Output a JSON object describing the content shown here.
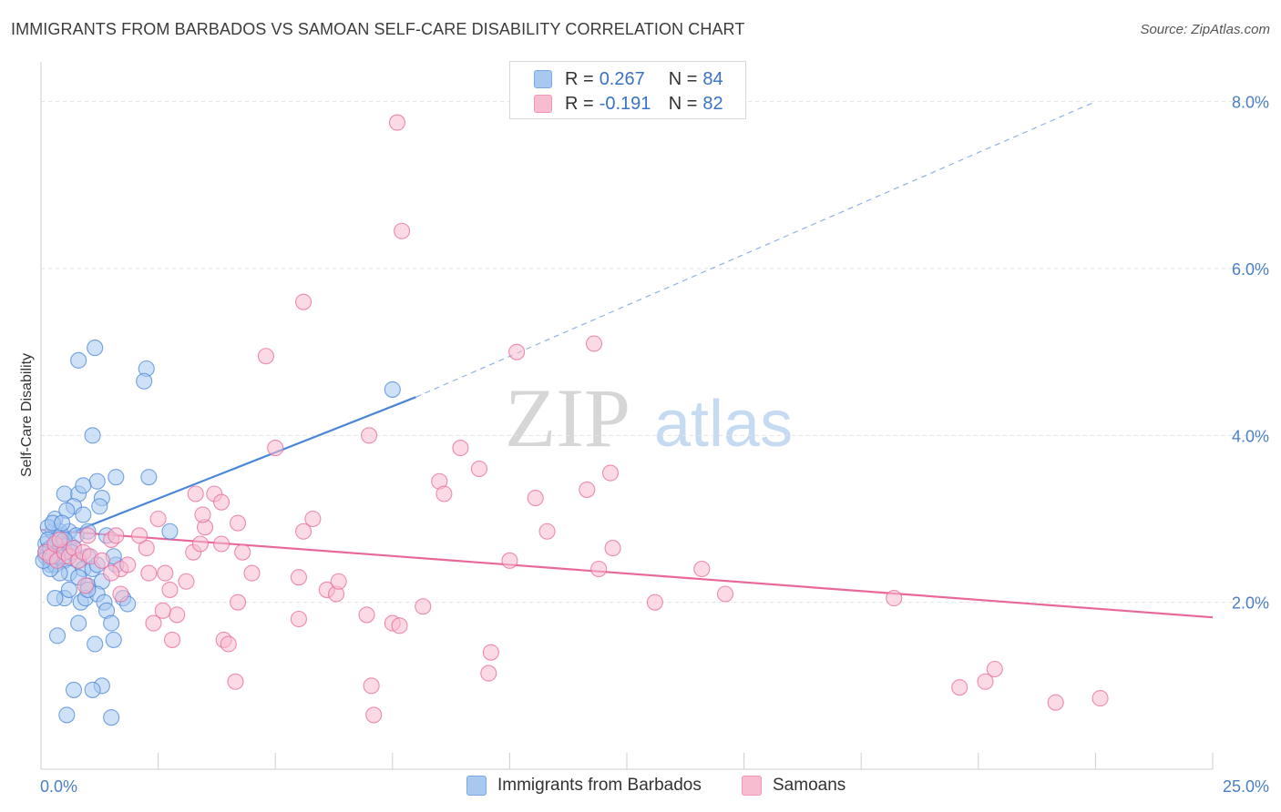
{
  "title": "IMMIGRANTS FROM BARBADOS VS SAMOAN SELF-CARE DISABILITY CORRELATION CHART",
  "source": "Source: ZipAtlas.com",
  "watermark": {
    "zip": "ZIP",
    "atlas": "atlas"
  },
  "legend": [
    {
      "r_label": "R =",
      "r_value": "0.267",
      "n_label": "N =",
      "n_value": "84",
      "color": "#a8c8f0"
    },
    {
      "r_label": "R =",
      "r_value": "-0.191",
      "n_label": "N =",
      "n_value": "82",
      "color": "#f8bcd0"
    }
  ],
  "chart_data": {
    "type": "scatter",
    "title": "IMMIGRANTS FROM BARBADOS VS SAMOAN SELF-CARE DISABILITY CORRELATION CHART",
    "xlabel": "",
    "ylabel": "Self-Care Disability",
    "xlim": [
      0,
      25
    ],
    "ylim": [
      0,
      8.4
    ],
    "x_tick_labels": [
      "0.0%",
      "25.0%"
    ],
    "y_ticks": [
      2,
      4,
      6,
      8
    ],
    "y_tick_labels": [
      "2.0%",
      "4.0%",
      "6.0%",
      "8.0%"
    ],
    "grid": true,
    "legend_position": "top-center",
    "series": [
      {
        "name": "Immigrants from Barbados",
        "color": "#4a86d8",
        "fill": "#a8c8f0",
        "trend": {
          "x": [
            0,
            8
          ],
          "y": [
            2.69,
            4.46
          ],
          "extend_dashed_to": [
            22.5,
            8.0
          ]
        },
        "points": [
          [
            0.1,
            2.55
          ],
          [
            0.15,
            2.6
          ],
          [
            0.2,
            2.5
          ],
          [
            0.1,
            2.7
          ],
          [
            0.3,
            2.65
          ],
          [
            0.2,
            2.45
          ],
          [
            0.25,
            2.85
          ],
          [
            0.35,
            2.75
          ],
          [
            0.4,
            2.6
          ],
          [
            0.5,
            2.5
          ],
          [
            0.45,
            2.8
          ],
          [
            0.6,
            2.7
          ],
          [
            0.3,
            3.0
          ],
          [
            0.5,
            3.3
          ],
          [
            0.8,
            3.3
          ],
          [
            0.7,
            3.15
          ],
          [
            0.55,
            3.1
          ],
          [
            0.9,
            3.05
          ],
          [
            0.4,
            2.85
          ],
          [
            0.6,
            2.85
          ],
          [
            0.75,
            2.8
          ],
          [
            0.3,
            2.45
          ],
          [
            0.5,
            2.55
          ],
          [
            0.7,
            2.65
          ],
          [
            0.8,
            2.5
          ],
          [
            1.0,
            2.55
          ],
          [
            0.9,
            2.4
          ],
          [
            1.1,
            2.4
          ],
          [
            1.2,
            2.45
          ],
          [
            0.6,
            2.35
          ],
          [
            0.4,
            2.35
          ],
          [
            0.8,
            2.3
          ],
          [
            0.2,
            2.4
          ],
          [
            1.0,
            2.2
          ],
          [
            1.3,
            2.25
          ],
          [
            0.5,
            2.05
          ],
          [
            0.6,
            2.15
          ],
          [
            0.85,
            2.0
          ],
          [
            0.95,
            2.05
          ],
          [
            1.2,
            2.1
          ],
          [
            1.35,
            2.0
          ],
          [
            1.75,
            2.05
          ],
          [
            1.85,
            1.98
          ],
          [
            1.0,
            2.15
          ],
          [
            0.3,
            2.05
          ],
          [
            1.4,
            1.9
          ],
          [
            0.8,
            1.75
          ],
          [
            1.5,
            1.75
          ],
          [
            0.35,
            1.6
          ],
          [
            1.55,
            1.55
          ],
          [
            1.15,
            1.5
          ],
          [
            0.7,
            0.95
          ],
          [
            1.3,
            1.0
          ],
          [
            1.1,
            0.95
          ],
          [
            0.55,
            0.65
          ],
          [
            1.5,
            0.62
          ],
          [
            0.8,
            4.9
          ],
          [
            1.15,
            5.05
          ],
          [
            2.25,
            4.8
          ],
          [
            2.2,
            4.65
          ],
          [
            1.1,
            4.0
          ],
          [
            1.6,
            3.5
          ],
          [
            2.3,
            3.5
          ],
          [
            1.2,
            3.45
          ],
          [
            0.9,
            3.4
          ],
          [
            1.3,
            3.25
          ],
          [
            1.25,
            3.15
          ],
          [
            1.4,
            2.8
          ],
          [
            2.75,
            2.85
          ],
          [
            1.6,
            2.45
          ],
          [
            1.55,
            2.55
          ],
          [
            0.15,
            2.9
          ],
          [
            0.25,
            2.95
          ],
          [
            0.1,
            2.6
          ],
          [
            0.2,
            2.65
          ],
          [
            0.05,
            2.5
          ],
          [
            7.5,
            4.55
          ],
          [
            0.65,
            2.6
          ],
          [
            1.0,
            2.85
          ],
          [
            0.45,
            2.95
          ],
          [
            0.5,
            2.75
          ],
          [
            0.35,
            2.55
          ],
          [
            0.15,
            2.75
          ],
          [
            0.25,
            2.55
          ]
        ]
      },
      {
        "name": "Samoans",
        "color": "#e8689a",
        "fill": "#f8bcd0",
        "trend": {
          "x": [
            0,
            25
          ],
          "y": [
            2.87,
            1.82
          ]
        },
        "points": [
          [
            0.1,
            2.6
          ],
          [
            0.2,
            2.55
          ],
          [
            0.3,
            2.7
          ],
          [
            0.35,
            2.5
          ],
          [
            0.5,
            2.6
          ],
          [
            0.6,
            2.55
          ],
          [
            0.7,
            2.65
          ],
          [
            0.8,
            2.5
          ],
          [
            0.9,
            2.6
          ],
          [
            0.4,
            2.75
          ],
          [
            1.0,
            2.8
          ],
          [
            1.05,
            2.55
          ],
          [
            1.5,
            2.75
          ],
          [
            1.6,
            2.8
          ],
          [
            1.7,
            2.4
          ],
          [
            1.85,
            2.45
          ],
          [
            1.5,
            2.35
          ],
          [
            1.3,
            2.5
          ],
          [
            0.95,
            2.2
          ],
          [
            1.7,
            2.1
          ],
          [
            2.25,
            2.65
          ],
          [
            2.5,
            3.0
          ],
          [
            2.65,
            2.35
          ],
          [
            2.75,
            2.15
          ],
          [
            2.9,
            1.85
          ],
          [
            2.4,
            1.75
          ],
          [
            2.8,
            1.55
          ],
          [
            3.1,
            2.25
          ],
          [
            3.25,
            2.6
          ],
          [
            3.4,
            2.7
          ],
          [
            3.5,
            2.9
          ],
          [
            3.45,
            3.05
          ],
          [
            3.3,
            3.3
          ],
          [
            3.7,
            3.3
          ],
          [
            3.85,
            3.2
          ],
          [
            3.85,
            2.7
          ],
          [
            4.2,
            2.95
          ],
          [
            4.2,
            2.0
          ],
          [
            4.3,
            2.6
          ],
          [
            4.5,
            2.35
          ],
          [
            3.9,
            1.55
          ],
          [
            4.0,
            1.5
          ],
          [
            4.15,
            1.05
          ],
          [
            2.6,
            1.9
          ],
          [
            2.3,
            2.35
          ],
          [
            2.1,
            2.8
          ],
          [
            5.0,
            3.85
          ],
          [
            5.8,
            3.0
          ],
          [
            5.6,
            2.85
          ],
          [
            5.5,
            2.3
          ],
          [
            6.1,
            2.15
          ],
          [
            6.3,
            2.1
          ],
          [
            6.35,
            2.25
          ],
          [
            5.5,
            1.8
          ],
          [
            6.95,
            1.85
          ],
          [
            7.05,
            1.0
          ],
          [
            7.1,
            0.65
          ],
          [
            7.5,
            1.75
          ],
          [
            7.65,
            1.72
          ],
          [
            7.0,
            4.0
          ],
          [
            7.7,
            6.45
          ],
          [
            7.6,
            7.75
          ],
          [
            5.6,
            5.6
          ],
          [
            4.8,
            4.95
          ],
          [
            8.5,
            3.45
          ],
          [
            8.6,
            3.3
          ],
          [
            8.95,
            3.85
          ],
          [
            9.35,
            3.6
          ],
          [
            8.15,
            1.95
          ],
          [
            10.0,
            2.5
          ],
          [
            10.8,
            2.85
          ],
          [
            9.55,
            1.15
          ],
          [
            9.6,
            1.4
          ],
          [
            10.55,
            3.25
          ],
          [
            11.65,
            3.35
          ],
          [
            12.15,
            3.55
          ],
          [
            11.9,
            2.4
          ],
          [
            12.2,
            2.65
          ],
          [
            13.1,
            2.0
          ],
          [
            14.1,
            2.4
          ],
          [
            14.6,
            2.1
          ],
          [
            11.8,
            5.1
          ]
        ],
        "extra_points": [
          [
            10.15,
            5.0
          ],
          [
            18.2,
            2.05
          ],
          [
            19.6,
            0.98
          ],
          [
            20.15,
            1.05
          ],
          [
            20.35,
            1.2
          ],
          [
            21.65,
            0.8
          ],
          [
            22.6,
            0.85
          ]
        ]
      }
    ]
  },
  "bottom_legend": [
    "Immigrants from Barbados",
    "Samoans"
  ]
}
